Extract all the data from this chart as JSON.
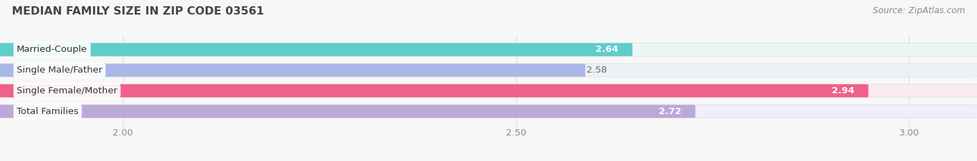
{
  "title": "MEDIAN FAMILY SIZE IN ZIP CODE 03561",
  "source": "Source: ZipAtlas.com",
  "categories": [
    "Married-Couple",
    "Single Male/Father",
    "Single Female/Mother",
    "Total Families"
  ],
  "values": [
    2.64,
    2.58,
    2.94,
    2.72
  ],
  "bar_colors": [
    "#5ececa",
    "#aab8e8",
    "#f0608a",
    "#bbaad8"
  ],
  "bar_bg_colors": [
    "#eaf6f6",
    "#edf0f8",
    "#faeaf2",
    "#f2eef8"
  ],
  "value_colors": [
    "#ffffff",
    "#666666",
    "#ffffff",
    "#ffffff"
  ],
  "value_inside": [
    true,
    false,
    true,
    true
  ],
  "xlim_min": 1.85,
  "xlim_max": 3.08,
  "xticks": [
    2.0,
    2.5,
    3.0
  ],
  "bar_height": 0.62,
  "bar_gap": 0.38,
  "figsize": [
    14.06,
    2.33
  ],
  "dpi": 100,
  "title_fontsize": 11.5,
  "label_fontsize": 9.5,
  "value_fontsize": 9.5,
  "tick_fontsize": 9.5,
  "source_fontsize": 9,
  "bg_color": "#f7f7f7",
  "title_color": "#444444",
  "source_color": "#888888",
  "grid_color": "#dddddd",
  "tick_color": "#888888"
}
